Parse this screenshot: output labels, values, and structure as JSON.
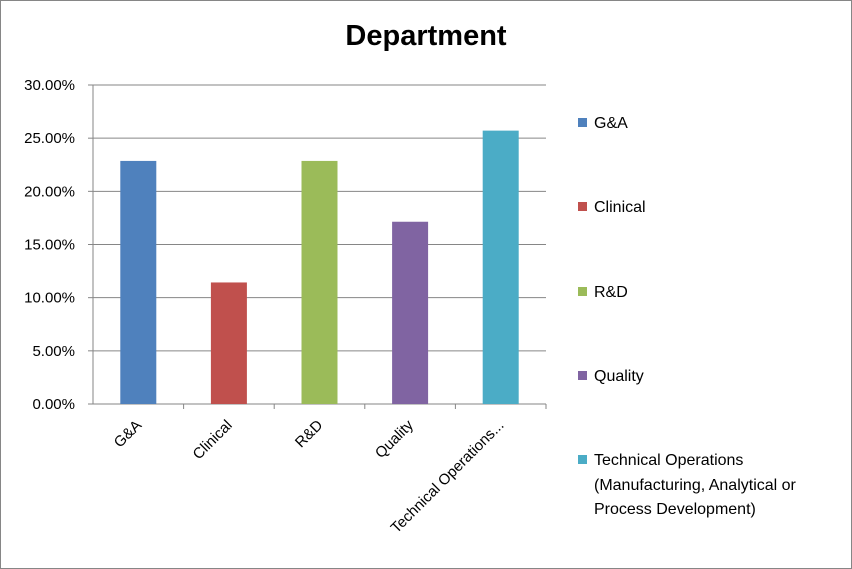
{
  "chart_data": {
    "type": "bar",
    "title": "Department",
    "xlabel": "",
    "ylabel": "",
    "ylim": [
      0,
      30
    ],
    "yticks": [
      "0.00%",
      "5.00%",
      "10.00%",
      "15.00%",
      "20.00%",
      "25.00%",
      "30.00%"
    ],
    "categories": [
      "G&A",
      "Clinical",
      "R&D",
      "Quality",
      "Technical Operations..."
    ],
    "values": [
      22.86,
      11.43,
      22.86,
      17.14,
      25.71
    ],
    "colors": [
      "#4f81bd",
      "#c0504d",
      "#9bbb59",
      "#8064a2",
      "#4bacc6"
    ],
    "grid": true,
    "legend_position": "right",
    "legend": [
      "G&A",
      "Clinical",
      "R&D",
      "Quality",
      "Technical Operations (Manufacturing, Analytical or Process Development)"
    ]
  }
}
